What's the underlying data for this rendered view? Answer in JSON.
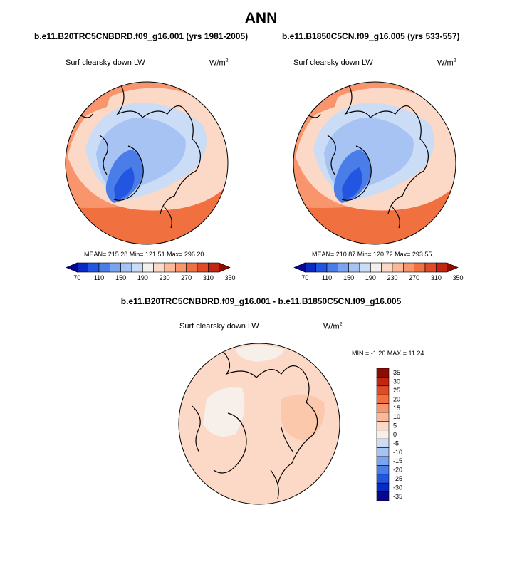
{
  "title": "ANN",
  "panels": [
    {
      "case": "b.e11.B20TRC5CNBDRD.f09_g16.001 (yrs 1981-2005)",
      "variable": "Surf clearsky down LW",
      "units": "W/m",
      "units_exp": "2",
      "stats": "MEAN= 215.28  Min= 121.51  Max= 296.20"
    },
    {
      "case": "b.e11.B1850C5CN.f09_g16.005 (yrs 533-557)",
      "variable": "Surf clearsky down LW",
      "units": "W/m",
      "units_exp": "2",
      "stats": "MEAN= 210.87  Min= 120.72  Max= 293.55"
    }
  ],
  "difference": {
    "case": "b.e11.B20TRC5CNBDRD.f09_g16.001 - b.e11.B1850C5CN.f09_g16.005",
    "variable": "Surf clearsky down LW",
    "units": "W/m",
    "units_exp": "2",
    "stats": "MIN =  -1.26 MAX =  11.24"
  },
  "chart_data": [
    {
      "type": "heatmap",
      "title": "b.e11.B20TRC5CNBDRD.f09_g16.001 (yrs 1981-2005)",
      "subtitle": "Surf clearsky down LW",
      "units": "W/m2",
      "projection": "north polar stereographic",
      "mean": 215.28,
      "min": 121.51,
      "max": 296.2,
      "colorbar_levels": [
        70,
        90,
        110,
        130,
        150,
        170,
        190,
        210,
        230,
        250,
        270,
        290,
        310,
        330,
        350
      ],
      "colorbar_tick_labels": [
        "70",
        "110",
        "150",
        "190",
        "230",
        "270",
        "310",
        "350"
      ]
    },
    {
      "type": "heatmap",
      "title": "b.e11.B1850C5CN.f09_g16.005 (yrs 533-557)",
      "subtitle": "Surf clearsky down LW",
      "units": "W/m2",
      "projection": "north polar stereographic",
      "mean": 210.87,
      "min": 120.72,
      "max": 293.55,
      "colorbar_levels": [
        70,
        90,
        110,
        130,
        150,
        170,
        190,
        210,
        230,
        250,
        270,
        290,
        310,
        330,
        350
      ],
      "colorbar_tick_labels": [
        "70",
        "110",
        "150",
        "190",
        "230",
        "270",
        "310",
        "350"
      ]
    },
    {
      "type": "heatmap",
      "title": "b.e11.B20TRC5CNBDRD.f09_g16.001 - b.e11.B1850C5CN.f09_g16.005",
      "subtitle": "Surf clearsky down LW",
      "units": "W/m2",
      "projection": "north polar stereographic",
      "min": -1.26,
      "max": 11.24,
      "colorbar_levels": [
        35,
        30,
        25,
        20,
        15,
        10,
        5,
        0,
        -5,
        -10,
        -15,
        -20,
        -25,
        -30,
        -35
      ],
      "colorbar_tick_labels": [
        "35",
        "30",
        "25",
        "20",
        "15",
        "10",
        "5",
        "0",
        "-5",
        "-10",
        "-15",
        "-20",
        "-25",
        "-30",
        "-35"
      ]
    }
  ],
  "palettes": {
    "abs": [
      "#08088c",
      "#0a2ac8",
      "#2255e0",
      "#4a7de8",
      "#7aa3f0",
      "#a6c3f4",
      "#cadcf6",
      "#f4f0ee",
      "#fcd9c6",
      "#fbb997",
      "#f8956d",
      "#f1703f",
      "#e04a24",
      "#c32610",
      "#8c0c04"
    ],
    "diff": [
      "#8c0c04",
      "#c32610",
      "#e04a24",
      "#f1703f",
      "#f8956d",
      "#fbb997",
      "#fcd9c6",
      "#f7efe9",
      "#cadcf6",
      "#a6c3f4",
      "#7aa3f0",
      "#4a7de8",
      "#2255e0",
      "#0a2ac8",
      "#08088c"
    ]
  }
}
